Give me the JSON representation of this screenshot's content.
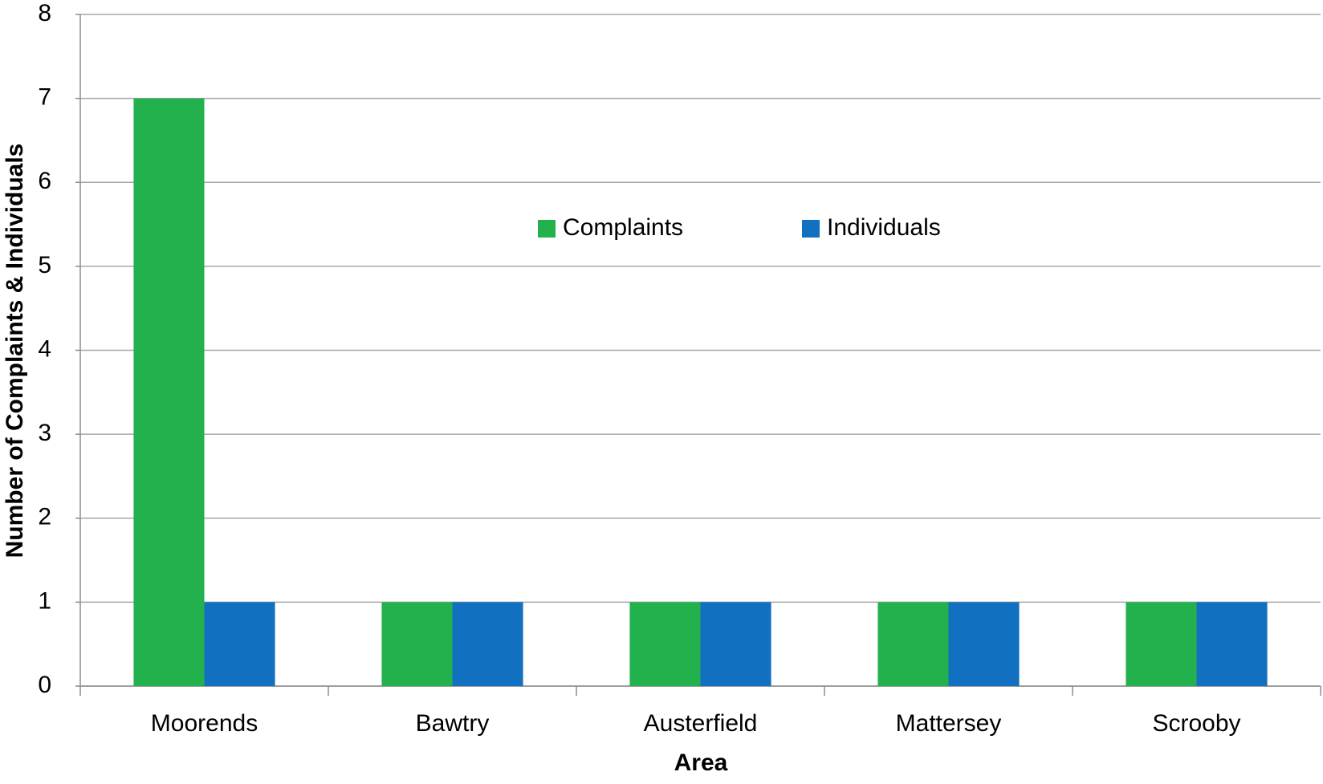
{
  "chart_data": {
    "type": "bar",
    "x_label": "Area",
    "y_label": "Number of Complaints & Individuals",
    "categories": [
      "Moorends",
      "Bawtry",
      "Austerfield",
      "Mattersey",
      "Scrooby"
    ],
    "series": [
      {
        "name": "Complaints",
        "color": "#23b14d",
        "values": [
          7,
          1,
          1,
          1,
          1
        ]
      },
      {
        "name": "Individuals",
        "color": "#1170c0",
        "values": [
          1,
          1,
          1,
          1,
          1
        ]
      }
    ],
    "ylim": [
      0,
      8
    ],
    "yticks": [
      0,
      1,
      2,
      3,
      4,
      5,
      6,
      7,
      8
    ],
    "grid": true,
    "legend": "top"
  }
}
